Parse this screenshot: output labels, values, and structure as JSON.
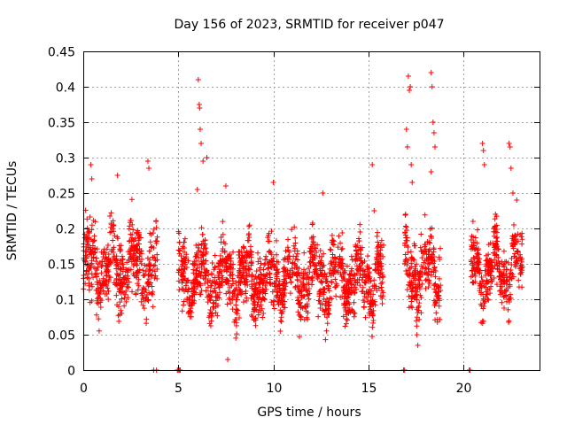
{
  "chart_data": {
    "type": "scatter",
    "title": "Day 156 of 2023, SRMTID for receiver p047",
    "xlabel": "GPS time / hours",
    "ylabel": "SRMTID / TECUs",
    "xlim": [
      0,
      24
    ],
    "ylim": [
      0,
      0.45
    ],
    "grid": true,
    "marker": "+",
    "color": "#ff0000",
    "x_ticks": [
      0,
      5,
      10,
      15,
      20
    ],
    "x_tick_labels": [
      "0",
      "5",
      "10",
      "15",
      "20"
    ],
    "y_ticks": [
      0,
      0.05,
      0.1,
      0.15,
      0.2,
      0.25,
      0.3,
      0.35,
      0.4,
      0.45
    ],
    "y_tick_labels": [
      "0",
      "0.05",
      "0.1",
      "0.15",
      "0.2",
      "0.25",
      "0.3",
      "0.35",
      "0.4",
      "0.45"
    ],
    "series": [
      {
        "name": "SRMTID",
        "segments": [
          {
            "x_start": 0.0,
            "x_end": 3.9,
            "baseline": 0.145,
            "spread": 0.05
          },
          {
            "x_start": 5.0,
            "x_end": 15.8,
            "baseline": 0.13,
            "spread": 0.045
          },
          {
            "x_start": 16.9,
            "x_end": 18.8,
            "baseline": 0.14,
            "spread": 0.05
          },
          {
            "x_start": 20.4,
            "x_end": 23.1,
            "baseline": 0.14,
            "spread": 0.04
          }
        ],
        "notable_points": [
          {
            "x": 0.4,
            "y": 0.29
          },
          {
            "x": 0.45,
            "y": 0.27
          },
          {
            "x": 1.8,
            "y": 0.275
          },
          {
            "x": 3.4,
            "y": 0.295
          },
          {
            "x": 3.45,
            "y": 0.285
          },
          {
            "x": 6.0,
            "y": 0.255
          },
          {
            "x": 6.05,
            "y": 0.41
          },
          {
            "x": 6.1,
            "y": 0.375
          },
          {
            "x": 6.12,
            "y": 0.37
          },
          {
            "x": 6.15,
            "y": 0.34
          },
          {
            "x": 6.2,
            "y": 0.32
          },
          {
            "x": 6.3,
            "y": 0.295
          },
          {
            "x": 6.5,
            "y": 0.3
          },
          {
            "x": 7.5,
            "y": 0.26
          },
          {
            "x": 7.6,
            "y": 0.015
          },
          {
            "x": 10.0,
            "y": 0.265
          },
          {
            "x": 12.6,
            "y": 0.25
          },
          {
            "x": 15.2,
            "y": 0.29
          },
          {
            "x": 15.3,
            "y": 0.225
          },
          {
            "x": 17.0,
            "y": 0.34
          },
          {
            "x": 17.05,
            "y": 0.315
          },
          {
            "x": 17.1,
            "y": 0.415
          },
          {
            "x": 17.15,
            "y": 0.395
          },
          {
            "x": 17.2,
            "y": 0.4
          },
          {
            "x": 17.25,
            "y": 0.29
          },
          {
            "x": 17.3,
            "y": 0.265
          },
          {
            "x": 17.6,
            "y": 0.035
          },
          {
            "x": 18.3,
            "y": 0.42
          },
          {
            "x": 18.35,
            "y": 0.4
          },
          {
            "x": 18.4,
            "y": 0.35
          },
          {
            "x": 18.45,
            "y": 0.335
          },
          {
            "x": 18.5,
            "y": 0.315
          },
          {
            "x": 18.3,
            "y": 0.28
          },
          {
            "x": 20.5,
            "y": 0.21
          },
          {
            "x": 21.0,
            "y": 0.32
          },
          {
            "x": 21.05,
            "y": 0.31
          },
          {
            "x": 21.1,
            "y": 0.29
          },
          {
            "x": 22.4,
            "y": 0.32
          },
          {
            "x": 22.45,
            "y": 0.315
          },
          {
            "x": 22.5,
            "y": 0.285
          },
          {
            "x": 22.6,
            "y": 0.25
          },
          {
            "x": 22.8,
            "y": 0.24
          }
        ],
        "zero_points": [
          {
            "x": 3.7,
            "y": 0
          },
          {
            "x": 3.85,
            "y": 0
          },
          {
            "x": 4.95,
            "y": 0
          },
          {
            "x": 5.0,
            "y": 0
          },
          {
            "x": 5.05,
            "y": 0
          },
          {
            "x": 5.1,
            "y": 0
          },
          {
            "x": 16.85,
            "y": 0
          },
          {
            "x": 16.9,
            "y": 0
          },
          {
            "x": 20.3,
            "y": 0
          },
          {
            "x": 20.35,
            "y": 0
          }
        ]
      }
    ]
  }
}
